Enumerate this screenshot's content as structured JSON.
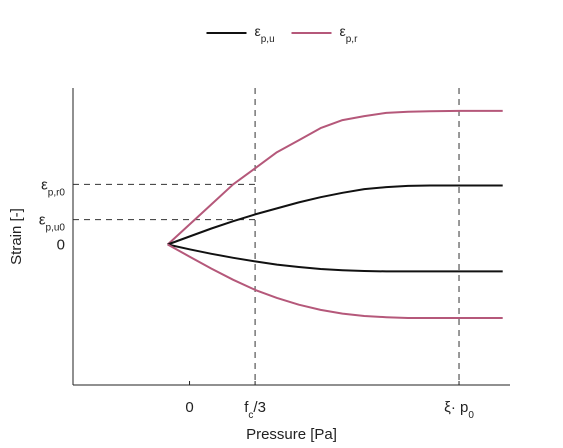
{
  "chart_data": {
    "type": "line",
    "title": "",
    "xlabel": "Pressure [Pa]",
    "ylabel": "Strain [-]",
    "legend": {
      "placement": "top-center",
      "entries": [
        {
          "base": "ε",
          "sub": "p,u",
          "color": "#111111"
        },
        {
          "base": "ε",
          "sub": "p,r",
          "color": "#b5587a"
        }
      ]
    },
    "xlim": [
      -1.6,
      4.4
    ],
    "ylim": [
      -3.5,
      3.9
    ],
    "x_ticks": [
      {
        "value": 0,
        "base": "0",
        "sub": "",
        "after": ""
      },
      {
        "value": 0.9,
        "base": "f",
        "sub": "c",
        "after": "/3"
      },
      {
        "value": 3.7,
        "base": "ξ· p",
        "sub": "0",
        "after": ""
      }
    ],
    "y_ticks": [
      {
        "value": 0,
        "base": "0",
        "sub": ""
      },
      {
        "value": 0.62,
        "base": "ε",
        "sub": "p,u0"
      },
      {
        "value": 1.5,
        "base": "ε",
        "sub": "p,r0"
      }
    ],
    "reference_lines": {
      "vertical": [
        0.9,
        3.7
      ],
      "horizontal": [
        {
          "y": 1.5,
          "x_from": -1.6,
          "x_to": 0.9
        },
        {
          "y": 0.62,
          "x_from": -1.6,
          "x_to": 0.9
        }
      ]
    },
    "series": [
      {
        "color": "#b5587a",
        "x": [
          -0.3,
          0.0,
          0.3,
          0.6,
          0.9,
          1.2,
          1.5,
          1.8,
          2.1,
          2.4,
          2.7,
          3.0,
          3.3,
          3.7,
          4.0,
          4.3
        ],
        "y": [
          0.0,
          0.5,
          1.0,
          1.5,
          1.9,
          2.3,
          2.6,
          2.9,
          3.1,
          3.2,
          3.28,
          3.31,
          3.32,
          3.33,
          3.33,
          3.33
        ]
      },
      {
        "color": "#111111",
        "x": [
          -0.3,
          0.0,
          0.3,
          0.6,
          0.9,
          1.2,
          1.5,
          1.8,
          2.1,
          2.4,
          2.7,
          3.0,
          3.3,
          3.7,
          4.0,
          4.3
        ],
        "y": [
          0.0,
          0.2,
          0.4,
          0.58,
          0.75,
          0.9,
          1.05,
          1.18,
          1.29,
          1.38,
          1.43,
          1.46,
          1.47,
          1.47,
          1.47,
          1.47
        ]
      },
      {
        "color": "#111111",
        "x": [
          -0.3,
          0.0,
          0.3,
          0.6,
          0.9,
          1.2,
          1.5,
          1.8,
          2.1,
          2.4,
          2.7,
          3.0,
          3.3,
          3.7,
          4.0,
          4.3
        ],
        "y": [
          0.0,
          -0.12,
          -0.23,
          -0.33,
          -0.42,
          -0.5,
          -0.56,
          -0.61,
          -0.64,
          -0.66,
          -0.67,
          -0.67,
          -0.67,
          -0.67,
          -0.67,
          -0.67
        ]
      },
      {
        "color": "#b5587a",
        "x": [
          -0.3,
          0.0,
          0.3,
          0.6,
          0.9,
          1.2,
          1.5,
          1.8,
          2.1,
          2.4,
          2.7,
          3.0,
          3.3,
          3.7,
          4.0,
          4.3
        ],
        "y": [
          0.0,
          -0.3,
          -0.6,
          -0.88,
          -1.13,
          -1.33,
          -1.5,
          -1.63,
          -1.72,
          -1.78,
          -1.81,
          -1.83,
          -1.83,
          -1.83,
          -1.83,
          -1.83
        ]
      }
    ]
  }
}
